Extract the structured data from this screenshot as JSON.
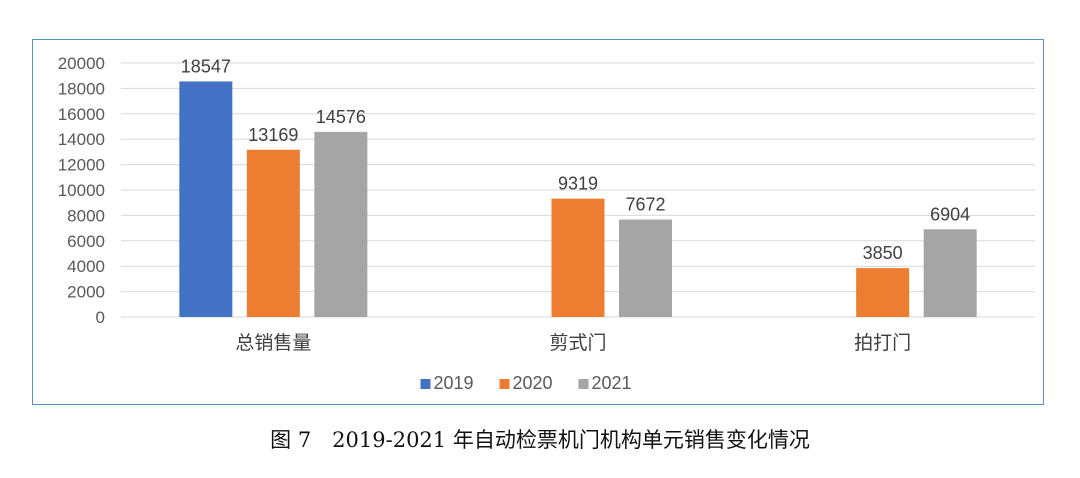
{
  "chart_data": {
    "type": "bar",
    "categories": [
      "总销售量",
      "剪式门",
      "拍打门"
    ],
    "series": [
      {
        "name": "2019",
        "color": "#4472c4",
        "values": [
          18547,
          null,
          null
        ]
      },
      {
        "name": "2020",
        "color": "#ed7d31",
        "values": [
          13169,
          9319,
          3850
        ]
      },
      {
        "name": "2021",
        "color": "#a5a5a5",
        "values": [
          14576,
          7672,
          6904
        ]
      }
    ],
    "yticks": [
      "0",
      "2000",
      "4000",
      "6000",
      "8000",
      "10000",
      "12000",
      "14000",
      "16000",
      "18000",
      "20000"
    ],
    "ylim": [
      0,
      20000
    ],
    "grid": true,
    "legend_position": "bottom"
  },
  "caption": "图 7　2019-2021 年自动检票机门机构单元销售变化情况"
}
